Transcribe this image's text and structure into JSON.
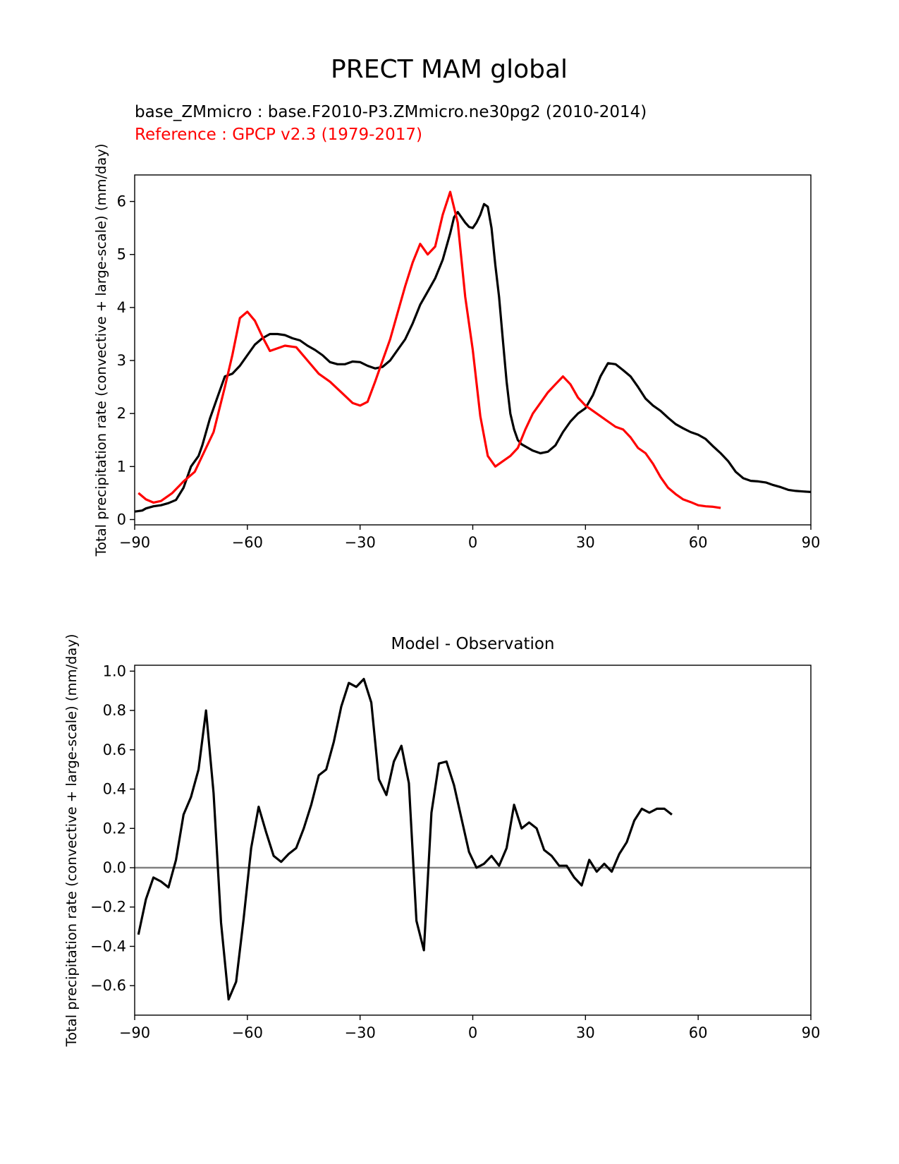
{
  "figure": {
    "title": "PRECT MAM global"
  },
  "chart_data": [
    {
      "type": "line",
      "title_lines": [
        {
          "text": "base_ZMmicro : base.F2010-P3.ZMmicro.ne30pg2 (2010-2014)",
          "color": "#000000"
        },
        {
          "text": "Reference : GPCP v2.3 (1979-2017)",
          "color": "#ff0000"
        }
      ],
      "xlabel": "",
      "ylabel": "Total precipitation rate (convective + large-scale) (mm/day)",
      "xlim": [
        -90,
        90
      ],
      "ylim": [
        -0.1,
        6.5
      ],
      "xticks": [
        -90,
        -60,
        -30,
        0,
        30,
        60,
        90
      ],
      "xtick_labels": [
        "−90",
        "−60",
        "−30",
        "0",
        "30",
        "60",
        "90"
      ],
      "yticks": [
        0,
        1,
        2,
        3,
        4,
        5,
        6
      ],
      "ytick_labels": [
        "0",
        "1",
        "2",
        "3",
        "4",
        "5",
        "6"
      ],
      "grid": false,
      "series": [
        {
          "color": "#000000",
          "points": [
            [
              -90,
              0.15
            ],
            [
              -88,
              0.17
            ],
            [
              -87,
              0.21
            ],
            [
              -85,
              0.25
            ],
            [
              -83,
              0.27
            ],
            [
              -81,
              0.31
            ],
            [
              -79,
              0.37
            ],
            [
              -77,
              0.6
            ],
            [
              -75,
              1.0
            ],
            [
              -73,
              1.2
            ],
            [
              -72,
              1.4
            ],
            [
              -70,
              1.9
            ],
            [
              -68,
              2.3
            ],
            [
              -66,
              2.7
            ],
            [
              -64,
              2.75
            ],
            [
              -62,
              2.9
            ],
            [
              -60,
              3.1
            ],
            [
              -58,
              3.3
            ],
            [
              -56,
              3.42
            ],
            [
              -54,
              3.5
            ],
            [
              -52,
              3.5
            ],
            [
              -50,
              3.48
            ],
            [
              -48,
              3.42
            ],
            [
              -46,
              3.38
            ],
            [
              -44,
              3.28
            ],
            [
              -42,
              3.2
            ],
            [
              -40,
              3.1
            ],
            [
              -38,
              2.97
            ],
            [
              -36,
              2.93
            ],
            [
              -34,
              2.93
            ],
            [
              -32,
              2.98
            ],
            [
              -30,
              2.97
            ],
            [
              -28,
              2.9
            ],
            [
              -26,
              2.85
            ],
            [
              -24,
              2.88
            ],
            [
              -22,
              3.0
            ],
            [
              -20,
              3.2
            ],
            [
              -18,
              3.4
            ],
            [
              -16,
              3.7
            ],
            [
              -14,
              4.05
            ],
            [
              -12,
              4.3
            ],
            [
              -10,
              4.55
            ],
            [
              -8,
              4.9
            ],
            [
              -6,
              5.4
            ],
            [
              -5,
              5.7
            ],
            [
              -4,
              5.8
            ],
            [
              -3,
              5.7
            ],
            [
              -2,
              5.6
            ],
            [
              -1,
              5.52
            ],
            [
              0,
              5.5
            ],
            [
              1,
              5.6
            ],
            [
              2,
              5.75
            ],
            [
              3,
              5.95
            ],
            [
              4,
              5.9
            ],
            [
              5,
              5.5
            ],
            [
              6,
              4.8
            ],
            [
              7,
              4.2
            ],
            [
              8,
              3.4
            ],
            [
              9,
              2.6
            ],
            [
              10,
              2.0
            ],
            [
              11,
              1.7
            ],
            [
              12,
              1.5
            ],
            [
              13,
              1.42
            ],
            [
              14,
              1.38
            ],
            [
              16,
              1.3
            ],
            [
              18,
              1.25
            ],
            [
              20,
              1.28
            ],
            [
              22,
              1.4
            ],
            [
              24,
              1.65
            ],
            [
              26,
              1.85
            ],
            [
              28,
              2.0
            ],
            [
              30,
              2.1
            ],
            [
              32,
              2.35
            ],
            [
              34,
              2.7
            ],
            [
              36,
              2.95
            ],
            [
              38,
              2.93
            ],
            [
              40,
              2.82
            ],
            [
              42,
              2.7
            ],
            [
              44,
              2.5
            ],
            [
              46,
              2.28
            ],
            [
              48,
              2.15
            ],
            [
              50,
              2.05
            ],
            [
              52,
              1.92
            ],
            [
              54,
              1.8
            ],
            [
              56,
              1.72
            ],
            [
              58,
              1.65
            ],
            [
              60,
              1.6
            ],
            [
              62,
              1.52
            ],
            [
              64,
              1.38
            ],
            [
              66,
              1.25
            ],
            [
              68,
              1.1
            ],
            [
              70,
              0.9
            ],
            [
              72,
              0.78
            ],
            [
              74,
              0.73
            ],
            [
              76,
              0.72
            ],
            [
              78,
              0.7
            ],
            [
              80,
              0.65
            ],
            [
              82,
              0.61
            ],
            [
              84,
              0.56
            ],
            [
              86,
              0.54
            ],
            [
              88,
              0.53
            ],
            [
              90,
              0.52
            ]
          ]
        },
        {
          "color": "#ff0000",
          "points": [
            [
              -89,
              0.5
            ],
            [
              -87,
              0.38
            ],
            [
              -85,
              0.32
            ],
            [
              -83,
              0.35
            ],
            [
              -80,
              0.5
            ],
            [
              -77,
              0.72
            ],
            [
              -74,
              0.9
            ],
            [
              -71,
              1.35
            ],
            [
              -69,
              1.65
            ],
            [
              -66,
              2.5
            ],
            [
              -64,
              3.1
            ],
            [
              -62,
              3.8
            ],
            [
              -60,
              3.92
            ],
            [
              -58,
              3.75
            ],
            [
              -56,
              3.45
            ],
            [
              -54,
              3.18
            ],
            [
              -52,
              3.23
            ],
            [
              -50,
              3.28
            ],
            [
              -47,
              3.25
            ],
            [
              -44,
              3.0
            ],
            [
              -41,
              2.75
            ],
            [
              -38,
              2.6
            ],
            [
              -35,
              2.4
            ],
            [
              -32,
              2.2
            ],
            [
              -30,
              2.15
            ],
            [
              -28,
              2.22
            ],
            [
              -26,
              2.6
            ],
            [
              -24,
              3.0
            ],
            [
              -22,
              3.4
            ],
            [
              -20,
              3.9
            ],
            [
              -18,
              4.4
            ],
            [
              -16,
              4.85
            ],
            [
              -14,
              5.2
            ],
            [
              -12,
              5.0
            ],
            [
              -10,
              5.15
            ],
            [
              -8,
              5.75
            ],
            [
              -6,
              6.18
            ],
            [
              -4,
              5.6
            ],
            [
              -2,
              4.2
            ],
            [
              0,
              3.2
            ],
            [
              2,
              1.95
            ],
            [
              4,
              1.2
            ],
            [
              6,
              1.0
            ],
            [
              8,
              1.1
            ],
            [
              10,
              1.2
            ],
            [
              12,
              1.35
            ],
            [
              14,
              1.7
            ],
            [
              16,
              2.0
            ],
            [
              18,
              2.2
            ],
            [
              20,
              2.4
            ],
            [
              22,
              2.55
            ],
            [
              24,
              2.7
            ],
            [
              26,
              2.55
            ],
            [
              28,
              2.3
            ],
            [
              30,
              2.15
            ],
            [
              32,
              2.05
            ],
            [
              34,
              1.95
            ],
            [
              36,
              1.85
            ],
            [
              38,
              1.75
            ],
            [
              40,
              1.7
            ],
            [
              42,
              1.55
            ],
            [
              44,
              1.35
            ],
            [
              46,
              1.25
            ],
            [
              48,
              1.05
            ],
            [
              50,
              0.8
            ],
            [
              52,
              0.6
            ],
            [
              54,
              0.48
            ],
            [
              56,
              0.38
            ],
            [
              58,
              0.33
            ],
            [
              60,
              0.27
            ],
            [
              62,
              0.25
            ],
            [
              64,
              0.24
            ],
            [
              66,
              0.22
            ]
          ]
        }
      ]
    },
    {
      "type": "line",
      "title": "Model - Observation",
      "xlabel": "",
      "ylabel": "Total precipitation rate (convective + large-scale) (mm/day)",
      "xlim": [
        -90,
        90
      ],
      "ylim": [
        -0.75,
        1.03
      ],
      "xticks": [
        -90,
        -60,
        -30,
        0,
        30,
        60,
        90
      ],
      "xtick_labels": [
        "−90",
        "−60",
        "−30",
        "0",
        "30",
        "60",
        "90"
      ],
      "yticks": [
        -0.6,
        -0.4,
        -0.2,
        0.0,
        0.2,
        0.4,
        0.6,
        0.8,
        1.0
      ],
      "ytick_labels": [
        "−0.6",
        "−0.4",
        "−0.2",
        "0.0",
        "0.2",
        "0.4",
        "0.6",
        "0.8",
        "1.0"
      ],
      "grid": false,
      "zero_line": {
        "y": 0,
        "color": "#808080"
      },
      "series": [
        {
          "color": "#000000",
          "points": [
            [
              -89,
              -0.34
            ],
            [
              -87,
              -0.16
            ],
            [
              -85,
              -0.05
            ],
            [
              -83,
              -0.07
            ],
            [
              -81,
              -0.1
            ],
            [
              -79,
              0.04
            ],
            [
              -77,
              0.27
            ],
            [
              -75,
              0.36
            ],
            [
              -73,
              0.5
            ],
            [
              -71,
              0.8
            ],
            [
              -69,
              0.38
            ],
            [
              -67,
              -0.28
            ],
            [
              -65,
              -0.67
            ],
            [
              -63,
              -0.58
            ],
            [
              -61,
              -0.26
            ],
            [
              -59,
              0.1
            ],
            [
              -57,
              0.31
            ],
            [
              -55,
              0.18
            ],
            [
              -53,
              0.06
            ],
            [
              -51,
              0.03
            ],
            [
              -49,
              0.07
            ],
            [
              -47,
              0.1
            ],
            [
              -45,
              0.2
            ],
            [
              -43,
              0.32
            ],
            [
              -41,
              0.47
            ],
            [
              -39,
              0.5
            ],
            [
              -37,
              0.64
            ],
            [
              -35,
              0.82
            ],
            [
              -33,
              0.94
            ],
            [
              -31,
              0.92
            ],
            [
              -29,
              0.96
            ],
            [
              -27,
              0.84
            ],
            [
              -25,
              0.45
            ],
            [
              -23,
              0.37
            ],
            [
              -21,
              0.54
            ],
            [
              -19,
              0.62
            ],
            [
              -17,
              0.43
            ],
            [
              -15,
              -0.27
            ],
            [
              -13,
              -0.42
            ],
            [
              -11,
              0.28
            ],
            [
              -9,
              0.53
            ],
            [
              -7,
              0.54
            ],
            [
              -5,
              0.42
            ],
            [
              -3,
              0.25
            ],
            [
              -1,
              0.08
            ],
            [
              1,
              0.0
            ],
            [
              3,
              0.02
            ],
            [
              5,
              0.06
            ],
            [
              7,
              0.01
            ],
            [
              9,
              0.1
            ],
            [
              11,
              0.32
            ],
            [
              13,
              0.2
            ],
            [
              15,
              0.23
            ],
            [
              17,
              0.2
            ],
            [
              19,
              0.09
            ],
            [
              21,
              0.06
            ],
            [
              23,
              0.01
            ],
            [
              25,
              0.01
            ],
            [
              27,
              -0.05
            ],
            [
              29,
              -0.09
            ],
            [
              31,
              0.04
            ],
            [
              33,
              -0.02
            ],
            [
              35,
              0.02
            ],
            [
              37,
              -0.02
            ],
            [
              39,
              0.07
            ],
            [
              41,
              0.13
            ],
            [
              43,
              0.24
            ],
            [
              45,
              0.3
            ],
            [
              47,
              0.28
            ],
            [
              49,
              0.3
            ],
            [
              51,
              0.3
            ],
            [
              53,
              0.27
            ]
          ]
        }
      ]
    }
  ]
}
